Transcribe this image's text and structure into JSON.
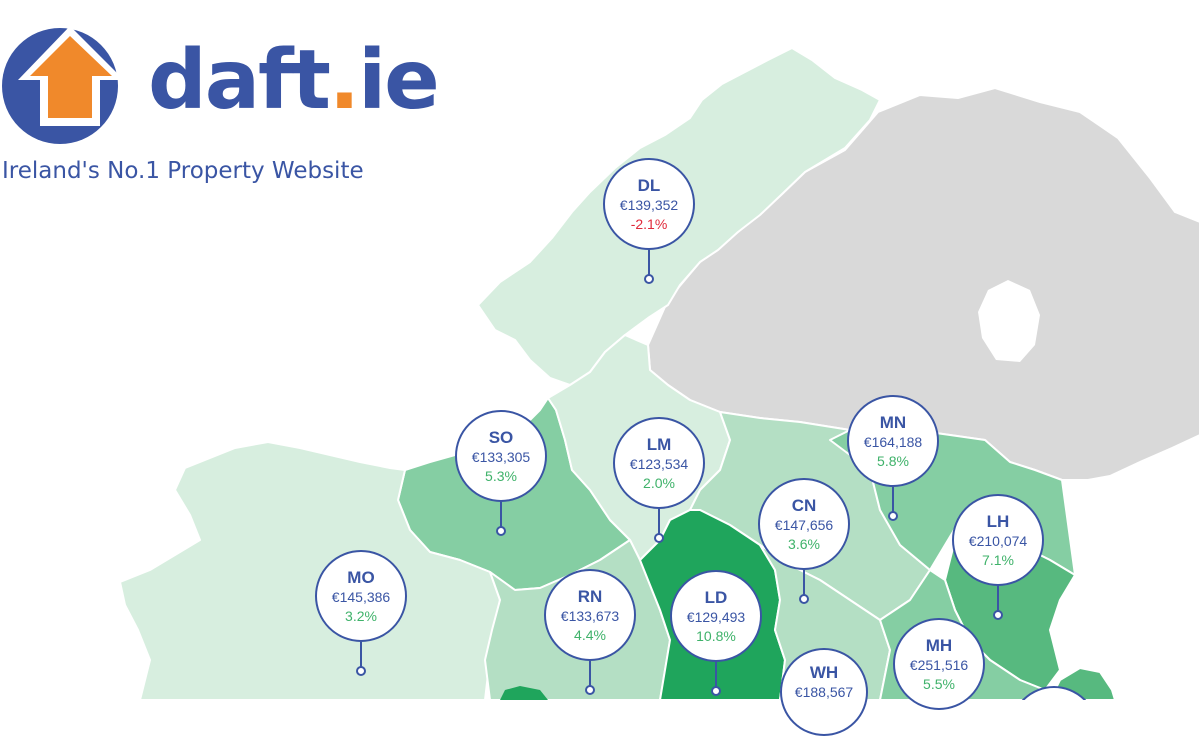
{
  "brand": {
    "name_main": "daft",
    "name_dot": ".",
    "name_tld": "ie",
    "tagline": "Ireland's No.1 Property Website",
    "color": "#3a55a4",
    "accent": "#f0892b"
  },
  "legend_colors": {
    "ni": "#d9d9d9",
    "pale": "#d7eedf",
    "light": "#b4dfc4",
    "medium": "#85ceA3",
    "strong": "#57b97f",
    "dark": "#1fa55c",
    "border": "#ffffff",
    "marker": "#3a55a4",
    "up": "#3fb26a",
    "down": "#e0293a"
  },
  "counties": [
    {
      "code": "DL",
      "price": "€139,352",
      "change": "-2.1%",
      "direction": "down"
    },
    {
      "code": "SO",
      "price": "€133,305",
      "change": "5.3%",
      "direction": "up"
    },
    {
      "code": "LM",
      "price": "€123,534",
      "change": "2.0%",
      "direction": "up"
    },
    {
      "code": "MN",
      "price": "€164,188",
      "change": "5.8%",
      "direction": "up"
    },
    {
      "code": "CN",
      "price": "€147,656",
      "change": "3.6%",
      "direction": "up"
    },
    {
      "code": "LH",
      "price": "€210,074",
      "change": "7.1%",
      "direction": "up"
    },
    {
      "code": "MO",
      "price": "€145,386",
      "change": "3.2%",
      "direction": "up"
    },
    {
      "code": "RN",
      "price": "€133,673",
      "change": "4.4%",
      "direction": "up"
    },
    {
      "code": "LD",
      "price": "€129,493",
      "change": "10.8%",
      "direction": "up"
    },
    {
      "code": "MH",
      "price": "€251,516",
      "change": "5.5%",
      "direction": "up"
    },
    {
      "code": "WH",
      "price": "€188,567",
      "change": "",
      "direction": "up"
    }
  ]
}
